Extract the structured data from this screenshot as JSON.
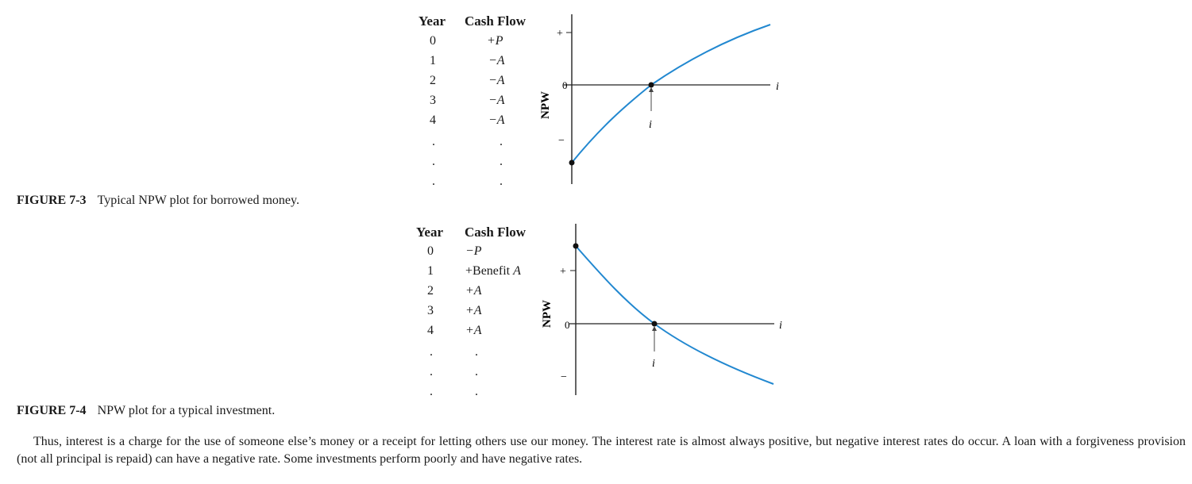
{
  "figure_7_3": {
    "table": {
      "year_header": "Year",
      "cashflow_header": "Cash Flow",
      "rows": [
        {
          "year": "0",
          "flow": "+P"
        },
        {
          "year": "1",
          "flow": "−A"
        },
        {
          "year": "2",
          "flow": "−A"
        },
        {
          "year": "3",
          "flow": "−A"
        },
        {
          "year": "4",
          "flow": "−A"
        }
      ],
      "ellipsis": "."
    },
    "plot": {
      "ylabel": "NPW",
      "plus_tick": "+",
      "zero_tick": "0",
      "minus_tick": "−",
      "x_axis_label": "i",
      "root_label": "i",
      "curve_color": "#2288d0",
      "shape": "increasing concave curve starting negative at i=0, crossing zero at root i"
    },
    "caption": {
      "number": "FIGURE 7-3",
      "text": "Typical NPW plot for borrowed money."
    }
  },
  "figure_7_4": {
    "table": {
      "year_header": "Year",
      "cashflow_header": "Cash Flow",
      "rows": [
        {
          "year": "0",
          "flow": "−P"
        },
        {
          "year": "1",
          "flow": "+Benefit A"
        },
        {
          "year": "2",
          "flow": "+A"
        },
        {
          "year": "3",
          "flow": "+A"
        },
        {
          "year": "4",
          "flow": "+A"
        }
      ],
      "ellipsis": "."
    },
    "plot": {
      "ylabel": "NPW",
      "plus_tick": "+",
      "zero_tick": "0",
      "minus_tick": "−",
      "x_axis_label": "i",
      "root_label": "i",
      "curve_color": "#2288d0",
      "shape": "decreasing convex curve starting positive at i=0, crossing zero at root i"
    },
    "caption": {
      "number": "FIGURE 7-4",
      "text": "NPW plot for a typical investment."
    }
  },
  "paragraph": "Thus, interest is a charge for the use of someone else’s money or a receipt for letting others use our money. The interest rate is almost always positive, but negative interest rates do occur. A loan with a forgiveness provision (not all principal is repaid) can have a negative rate. Some investments perform poorly and have negative rates."
}
